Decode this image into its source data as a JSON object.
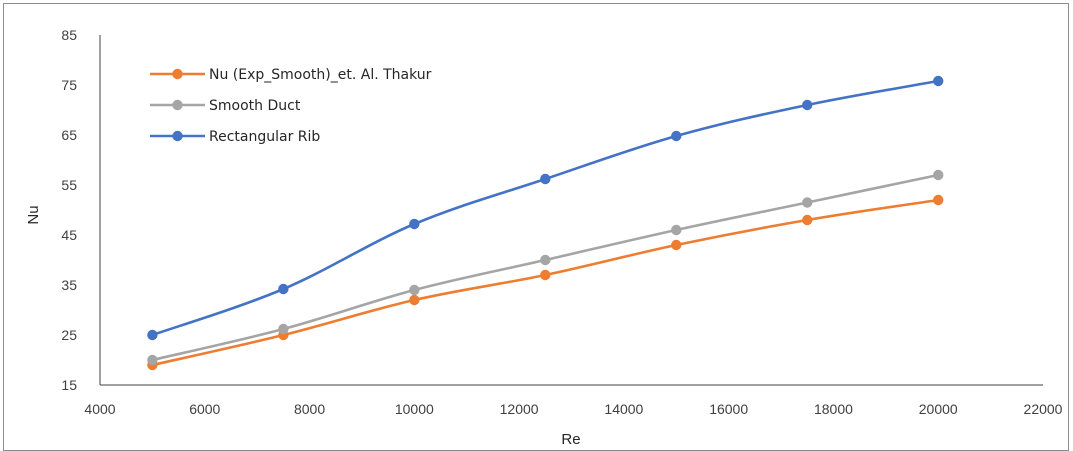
{
  "chart_data": {
    "type": "line",
    "title": "",
    "xlabel": "Re",
    "ylabel": "Nu",
    "xlim": [
      4000,
      22000
    ],
    "ylim": [
      15,
      85
    ],
    "x_ticks": [
      "4000",
      "6000",
      "8000",
      "10000",
      "12000",
      "14000",
      "16000",
      "18000",
      "20000",
      "22000"
    ],
    "y_ticks": [
      "15",
      "25",
      "35",
      "45",
      "55",
      "65",
      "75",
      "85"
    ],
    "grid": false,
    "legend_position": "top-left",
    "x": [
      5000,
      7500,
      10000,
      12500,
      15000,
      17500,
      20000
    ],
    "series": [
      {
        "name": "Nu (Exp_Smooth)_et. Al. Thakur",
        "color": "#ED7D31",
        "values": [
          19,
          25,
          32,
          37,
          43,
          48,
          52
        ]
      },
      {
        "name": "Smooth Duct",
        "color": "#A5A5A5",
        "values": [
          20,
          26.2,
          34,
          40,
          46,
          51.5,
          57
        ]
      },
      {
        "name": "Rectangular Rib",
        "color": "#4472C4",
        "values": [
          25,
          34.2,
          47.2,
          56.2,
          64.8,
          71,
          75.8
        ]
      }
    ]
  }
}
